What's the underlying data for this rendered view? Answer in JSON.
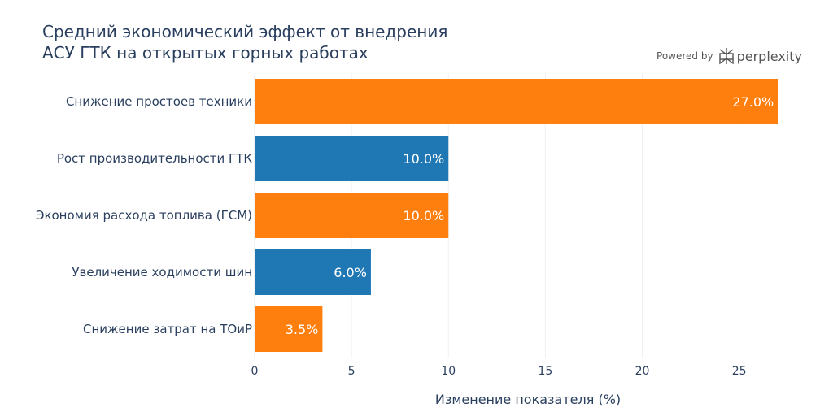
{
  "chart_data": {
    "type": "bar",
    "orientation": "horizontal",
    "title_lines": [
      "Средний экономический эффект от внедрения",
      "АСУ ГТК на открытых горных работах"
    ],
    "categories": [
      "Снижение простоев техники",
      "Рост производительности ГТК",
      "Экономия расхода топлива (ГСМ)",
      "Увеличение ходимости шин",
      "Снижение затрат на ТОиР"
    ],
    "values": [
      27.0,
      10.0,
      10.0,
      6.0,
      3.5
    ],
    "data_labels": [
      "27.0%",
      "10.0%",
      "10.0%",
      "6.0%",
      "3.5%"
    ],
    "bar_colors": [
      "#ff7f0e",
      "#1f77b4",
      "#ff7f0e",
      "#1f77b4",
      "#ff7f0e"
    ],
    "xlabel": "Изменение показателя (%)",
    "ylabel": "",
    "xlim": [
      0,
      28.5
    ],
    "x_ticks": [
      0,
      5,
      10,
      15,
      20,
      25
    ],
    "grid": true
  },
  "branding": {
    "powered_by": "Powered by",
    "name": "perplexity",
    "icon": "perplexity-logo-icon"
  }
}
